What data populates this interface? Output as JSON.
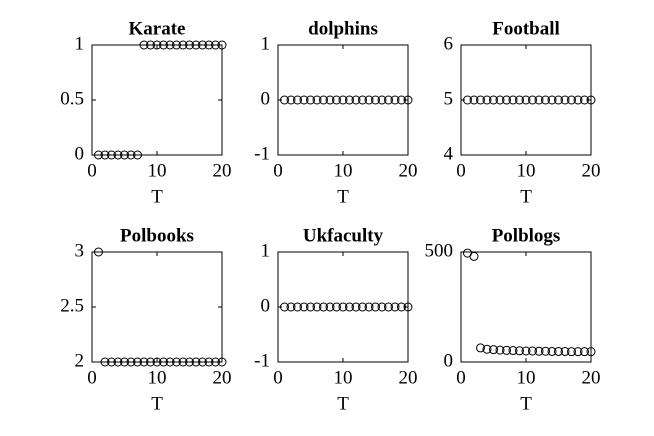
{
  "chart_data": [
    {
      "type": "scatter",
      "title": "Karate",
      "xlabel": "T",
      "x": [
        1,
        2,
        3,
        4,
        5,
        6,
        7,
        8,
        9,
        10,
        11,
        12,
        13,
        14,
        15,
        16,
        17,
        18,
        19,
        20
      ],
      "values": [
        0,
        0,
        0,
        0,
        0,
        0,
        0,
        1,
        1,
        1,
        1,
        1,
        1,
        1,
        1,
        1,
        1,
        1,
        1,
        1
      ],
      "color": "#000000",
      "xlim": [
        0,
        20
      ],
      "xticks": [
        0,
        10,
        20
      ],
      "ylim": [
        0,
        1
      ],
      "yticks": [
        0,
        0.5,
        1
      ]
    },
    {
      "type": "scatter",
      "title": "dolphins",
      "xlabel": "T",
      "x": [
        1,
        2,
        3,
        4,
        5,
        6,
        7,
        8,
        9,
        10,
        11,
        12,
        13,
        14,
        15,
        16,
        17,
        18,
        19,
        20
      ],
      "values": [
        0,
        0,
        0,
        0,
        0,
        0,
        0,
        0,
        0,
        0,
        0,
        0,
        0,
        0,
        0,
        0,
        0,
        0,
        0,
        0
      ],
      "color": "#000000",
      "xlim": [
        0,
        20
      ],
      "xticks": [
        0,
        10,
        20
      ],
      "ylim": [
        -1,
        1
      ],
      "yticks": [
        -1,
        0,
        1
      ]
    },
    {
      "type": "scatter",
      "title": "Football",
      "xlabel": "T",
      "x": [
        1,
        2,
        3,
        4,
        5,
        6,
        7,
        8,
        9,
        10,
        11,
        12,
        13,
        14,
        15,
        16,
        17,
        18,
        19,
        20
      ],
      "values": [
        5,
        5,
        5,
        5,
        5,
        5,
        5,
        5,
        5,
        5,
        5,
        5,
        5,
        5,
        5,
        5,
        5,
        5,
        5,
        5
      ],
      "color": "#000000",
      "xlim": [
        0,
        20
      ],
      "xticks": [
        0,
        10,
        20
      ],
      "ylim": [
        4,
        6
      ],
      "yticks": [
        4,
        5,
        6
      ]
    },
    {
      "type": "scatter",
      "title": "Polbooks",
      "xlabel": "T",
      "x": [
        1,
        2,
        3,
        4,
        5,
        6,
        7,
        8,
        9,
        10,
        11,
        12,
        13,
        14,
        15,
        16,
        17,
        18,
        19,
        20
      ],
      "values": [
        3,
        2,
        2,
        2,
        2,
        2,
        2,
        2,
        2,
        2,
        2,
        2,
        2,
        2,
        2,
        2,
        2,
        2,
        2,
        2
      ],
      "color": "#000000",
      "xlim": [
        0,
        20
      ],
      "xticks": [
        0,
        10,
        20
      ],
      "ylim": [
        2,
        3
      ],
      "yticks": [
        2,
        2.5,
        3
      ]
    },
    {
      "type": "scatter",
      "title": "Ukfaculty",
      "xlabel": "T",
      "x": [
        1,
        2,
        3,
        4,
        5,
        6,
        7,
        8,
        9,
        10,
        11,
        12,
        13,
        14,
        15,
        16,
        17,
        18,
        19,
        20
      ],
      "values": [
        0,
        0,
        0,
        0,
        0,
        0,
        0,
        0,
        0,
        0,
        0,
        0,
        0,
        0,
        0,
        0,
        0,
        0,
        0,
        0
      ],
      "color": "#000000",
      "xlim": [
        0,
        20
      ],
      "xticks": [
        0,
        10,
        20
      ],
      "ylim": [
        -1,
        1
      ],
      "yticks": [
        -1,
        0,
        1
      ]
    },
    {
      "type": "scatter",
      "title": "Polblogs",
      "xlabel": "T",
      "x": [
        1,
        2,
        3,
        4,
        5,
        6,
        7,
        8,
        9,
        10,
        11,
        12,
        13,
        14,
        15,
        16,
        17,
        18,
        19,
        20
      ],
      "values": [
        495,
        480,
        64,
        58,
        56,
        54,
        53,
        52,
        51,
        50,
        50,
        49,
        49,
        48,
        48,
        48,
        47,
        47,
        47,
        47
      ],
      "color": "#000000",
      "xlim": [
        0,
        20
      ],
      "xticks": [
        0,
        10,
        20
      ],
      "ylim": [
        0,
        500
      ],
      "yticks": [
        0,
        500
      ]
    }
  ]
}
